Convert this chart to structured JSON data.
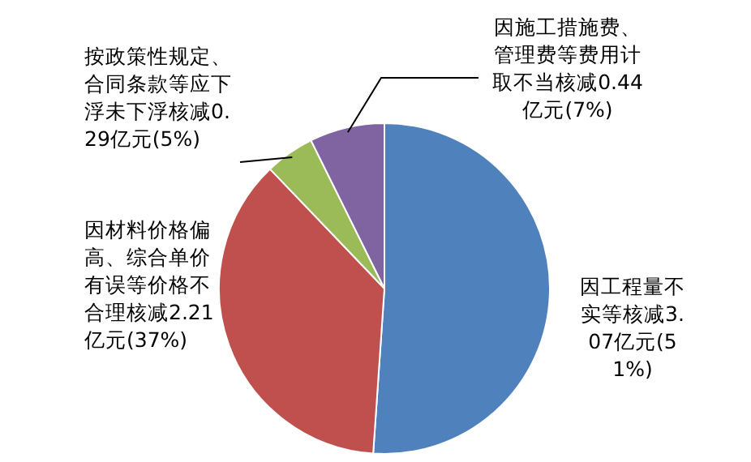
{
  "chart_data": {
    "type": "pie",
    "categories": [
      "因工程量不实等核减",
      "因材料价格偏高、综合单价有误等价格不合理核减",
      "按政策性规定、合同条款等应下浮未下浮核减",
      "因施工措施费、管理费等费用计取不当核减"
    ],
    "values": [
      3.07,
      2.21,
      0.29,
      0.44
    ],
    "colors": [
      "#4f81bd",
      "#c0504d",
      "#9bbb59",
      "#8064a2"
    ],
    "value_labels": [
      "3.07亿元(51%)",
      "2.21亿元(37%)",
      "0.29亿元(5%)",
      "0.44亿元(7%)"
    ]
  }
}
